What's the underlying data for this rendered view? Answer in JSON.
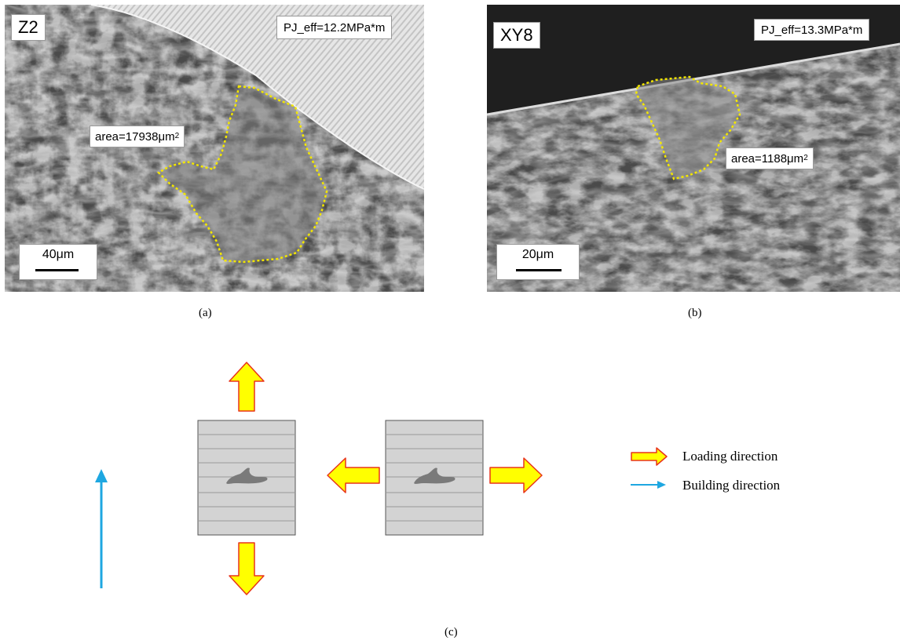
{
  "panel_a": {
    "specimen_id": "Z2",
    "pj_eff": "PJ_eff=12.2MPa*m",
    "area_prefix": "area=17938μm",
    "area_exp": "2",
    "scale": "40μm",
    "caption": "(a)"
  },
  "panel_b": {
    "specimen_id": "XY8",
    "pj_eff": "PJ_eff=13.3MPa*m",
    "area_prefix": "area=1188μm",
    "area_exp": "2",
    "scale": "20μm",
    "caption": "(b)"
  },
  "panel_c": {
    "caption": "(c)",
    "legend": [
      {
        "icon": "loading-arrow-icon",
        "label": "Loading direction"
      },
      {
        "icon": "building-arrow-icon",
        "label": "Building direction"
      }
    ]
  },
  "colors": {
    "defect_outline": "#f2e600",
    "loading_arrow_fill": "#ffff00",
    "loading_arrow_stroke": "#e8331a",
    "building_arrow": "#1ea7e1",
    "specimen_fill": "#d3d3d3",
    "defect_fill": "#7a7a7a"
  }
}
